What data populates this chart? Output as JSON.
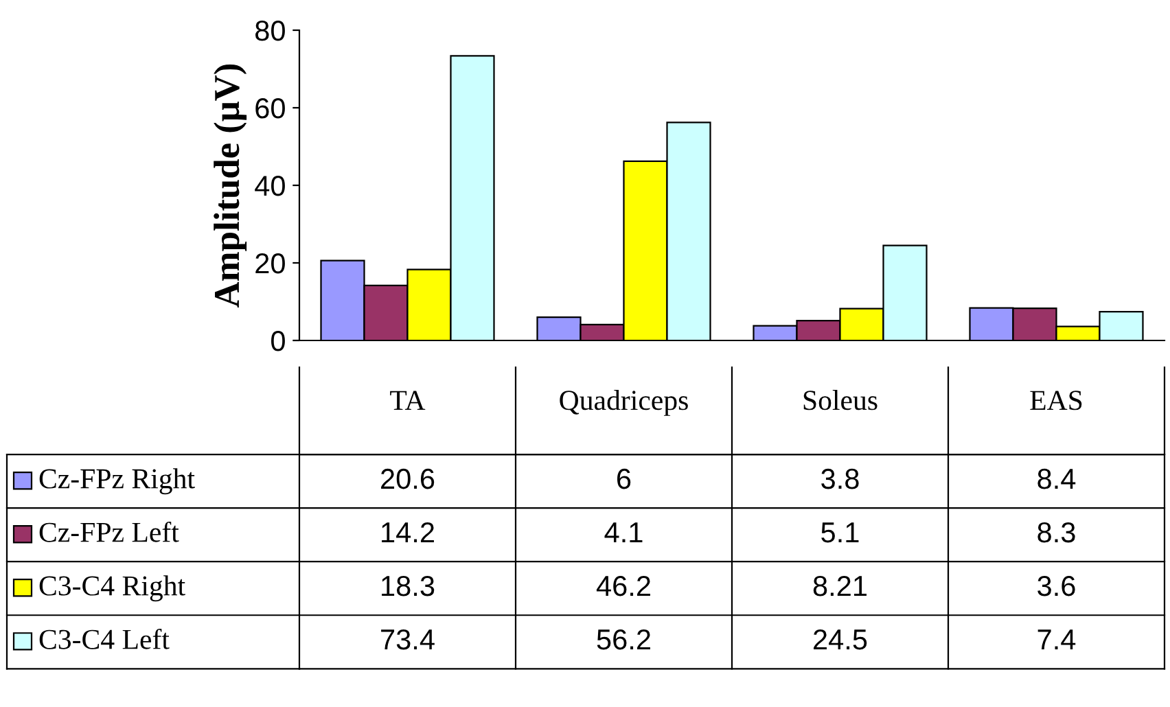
{
  "chart_data": {
    "type": "bar",
    "ylabel": "Amplitude (μV)",
    "categories": [
      "TA",
      "Quadriceps",
      "Soleus",
      "EAS"
    ],
    "series": [
      {
        "name": "Cz-FPz Right",
        "color": "#9999ff",
        "values": [
          20.6,
          6,
          3.8,
          8.4
        ]
      },
      {
        "name": "Cz-FPz Left",
        "color": "#993366",
        "values": [
          14.2,
          4.1,
          5.1,
          8.3
        ]
      },
      {
        "name": "C3-C4 Right",
        "color": "#ffff00",
        "values": [
          18.3,
          46.2,
          8.21,
          3.6
        ]
      },
      {
        "name": "C3-C4 Left",
        "color": "#ccffff",
        "values": [
          73.4,
          56.2,
          24.5,
          7.4
        ]
      }
    ],
    "ylim": [
      0,
      80
    ],
    "yticks": [
      0,
      20,
      40,
      60,
      80
    ],
    "grid": false,
    "legend": "left",
    "data_labels": true
  }
}
